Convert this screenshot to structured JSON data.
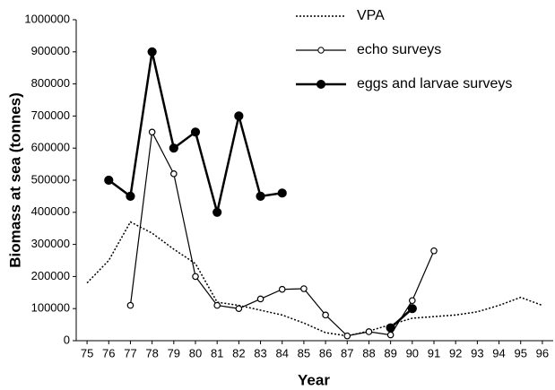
{
  "chart_data": {
    "type": "line",
    "xlabel": "Year",
    "ylabel": "Biomass at sea (tonnes)",
    "x": [
      75,
      76,
      77,
      78,
      79,
      80,
      81,
      82,
      83,
      84,
      85,
      86,
      87,
      88,
      89,
      90,
      91,
      92,
      93,
      94,
      95,
      96
    ],
    "xlim": [
      74.5,
      96.5
    ],
    "xticks": [
      75,
      76,
      77,
      78,
      79,
      80,
      81,
      82,
      83,
      84,
      85,
      86,
      87,
      88,
      89,
      90,
      91,
      92,
      93,
      94,
      95,
      96
    ],
    "ylim": [
      0,
      1000000
    ],
    "yticks": [
      0,
      100000,
      200000,
      300000,
      400000,
      500000,
      600000,
      700000,
      800000,
      900000,
      1000000
    ],
    "legend": "upper right",
    "series": [
      {
        "name": "VPA",
        "color": "#000000",
        "line_style": "dotted",
        "marker": "none",
        "values": [
          180000,
          250000,
          370000,
          335000,
          285000,
          240000,
          120000,
          110000,
          95000,
          80000,
          55000,
          25000,
          15000,
          30000,
          50000,
          70000,
          75000,
          80000,
          90000,
          110000,
          135000,
          110000
        ]
      },
      {
        "name": "echo surveys",
        "color": "#000000",
        "line_style": "thin",
        "marker": "open",
        "values": [
          null,
          null,
          110000,
          650000,
          520000,
          200000,
          110000,
          100000,
          130000,
          160000,
          162000,
          80000,
          15000,
          28000,
          18000,
          125000,
          280000,
          null,
          null,
          null,
          null,
          null
        ]
      },
      {
        "name": "eggs and larvae surveys",
        "color": "#000000",
        "line_style": "thick",
        "marker": "filled",
        "values": [
          null,
          500000,
          450000,
          900000,
          600000,
          650000,
          400000,
          700000,
          450000,
          460000,
          null,
          null,
          null,
          null,
          40000,
          100000,
          null,
          null,
          null,
          null,
          null,
          null
        ]
      }
    ]
  }
}
